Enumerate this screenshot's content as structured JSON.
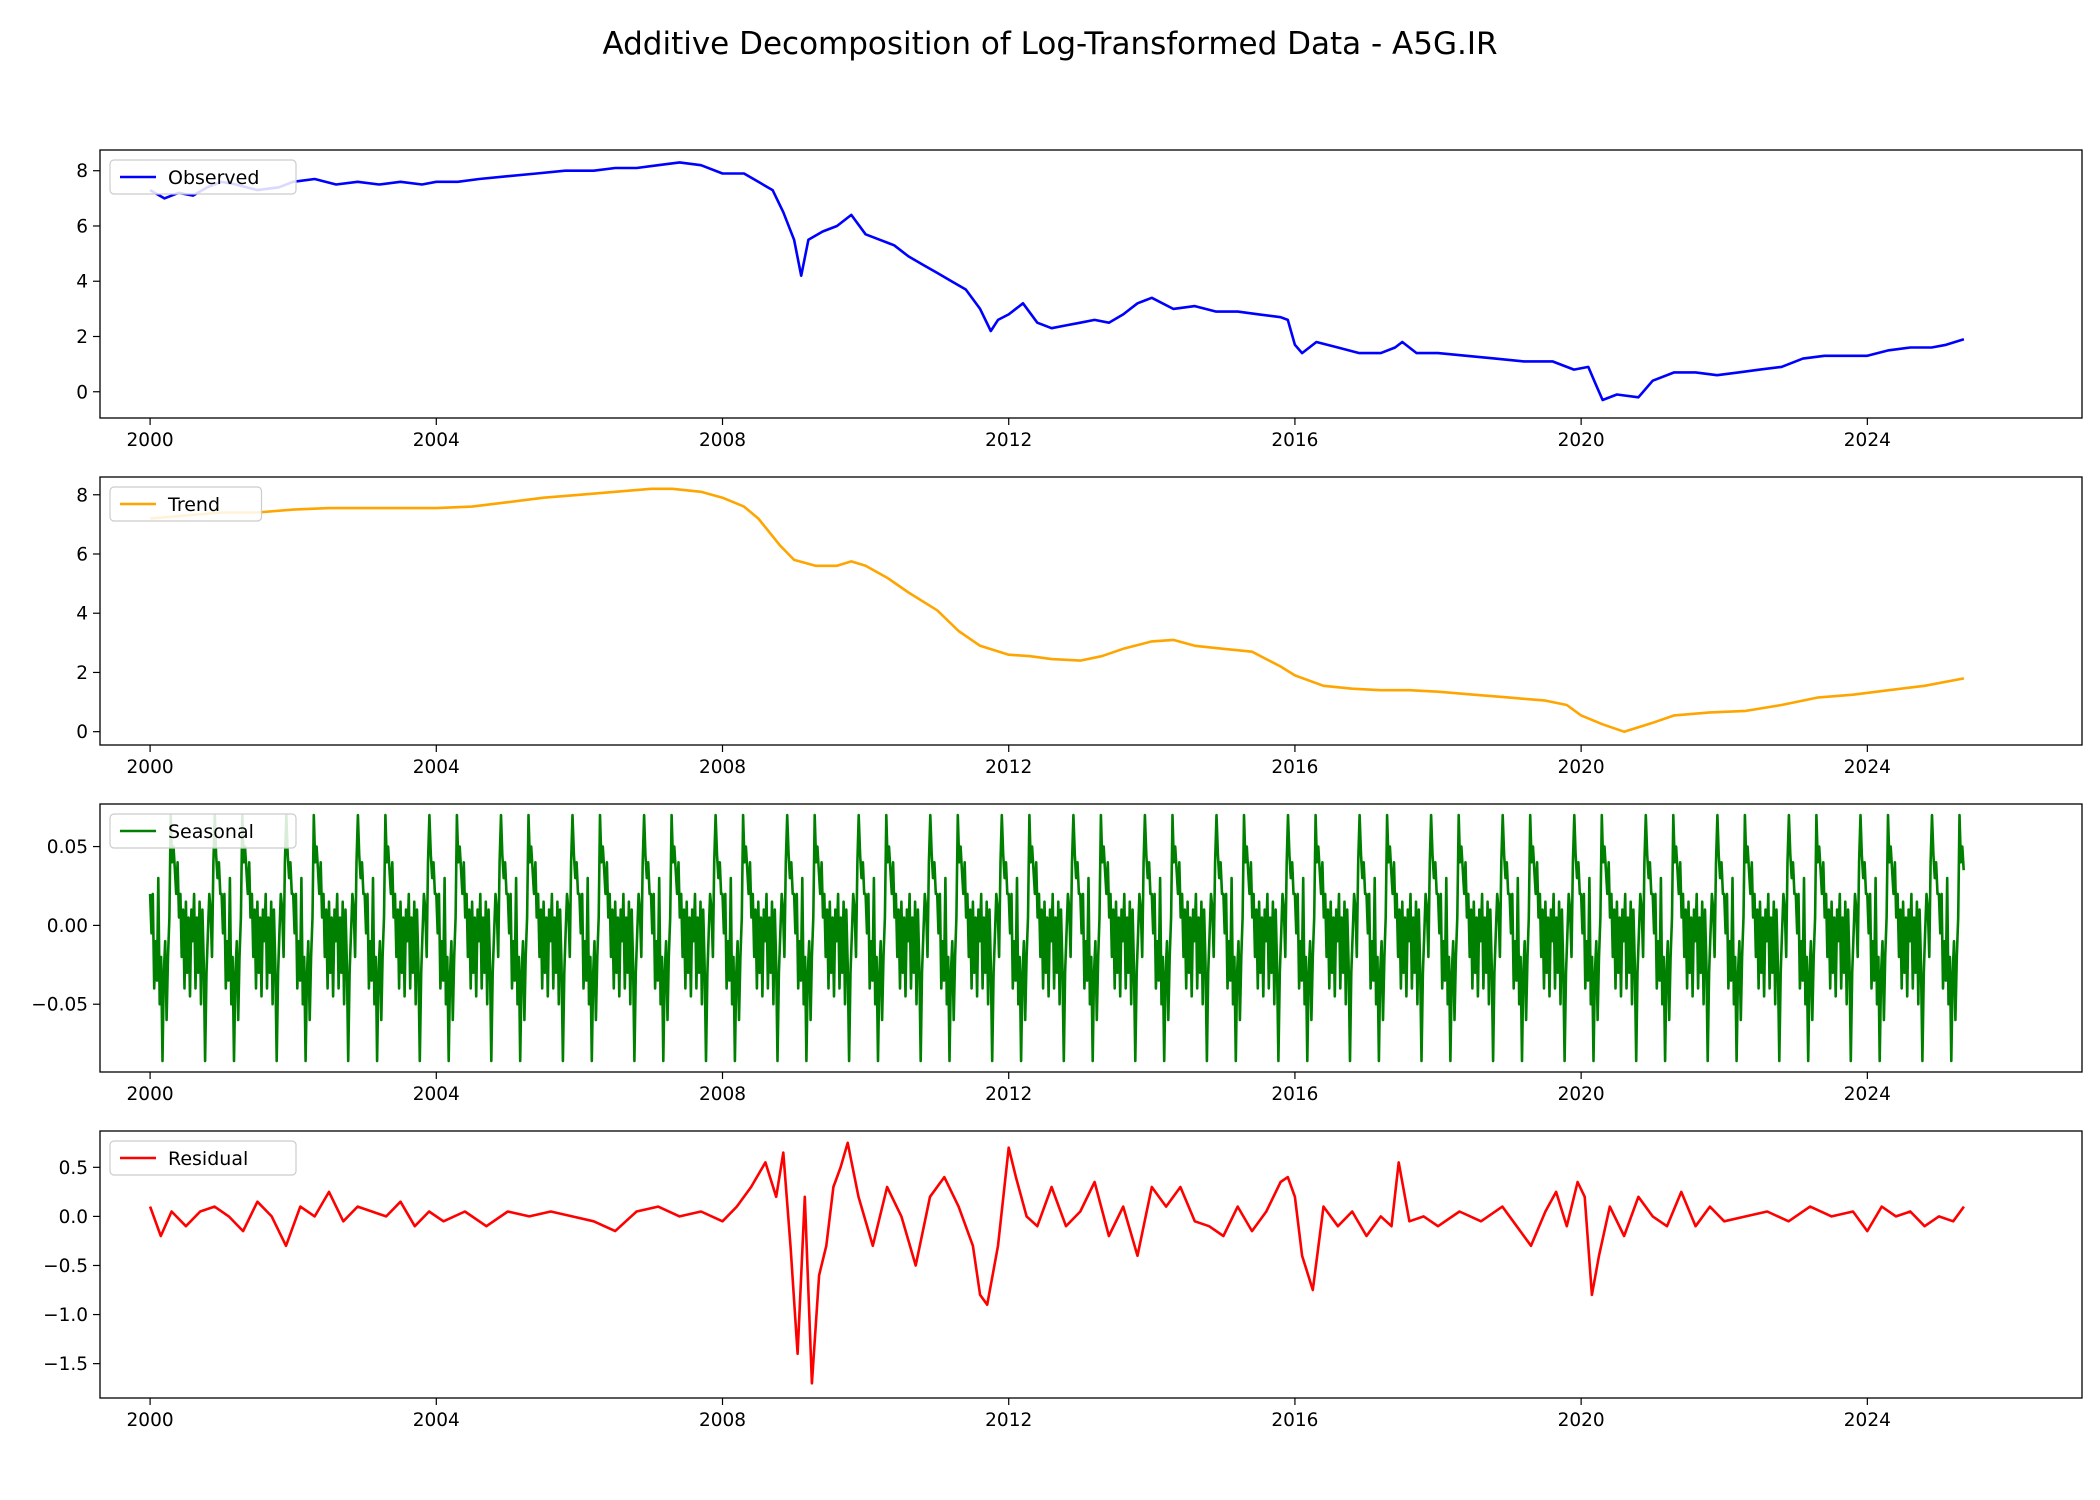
{
  "title": "Additive Decomposition of Log-Transformed Data - A5G.IR",
  "chart_data": [
    {
      "type": "line",
      "name": "Observed",
      "color": "#0000ff",
      "legend": "upper-left",
      "xlim": [
        1999.3,
        2027.0
      ],
      "ylim": [
        -0.95,
        8.75
      ],
      "x_ticks": [
        2000,
        2004,
        2008,
        2012,
        2016,
        2020,
        2024
      ],
      "x_tick_labels": [
        "2000",
        "2004",
        "2008",
        "2012",
        "2016",
        "2020",
        "2024"
      ],
      "y_ticks": [
        0,
        2,
        4,
        6,
        8
      ],
      "y_tick_labels": [
        "0",
        "2",
        "4",
        "6",
        "8"
      ],
      "x": [
        2000.0,
        2000.2,
        2000.4,
        2000.6,
        2000.8,
        2001.0,
        2001.2,
        2001.5,
        2001.8,
        2002.0,
        2002.3,
        2002.6,
        2002.9,
        2003.2,
        2003.5,
        2003.8,
        2004.0,
        2004.3,
        2004.6,
        2005.0,
        2005.4,
        2005.8,
        2006.2,
        2006.5,
        2006.8,
        2007.1,
        2007.4,
        2007.7,
        2008.0,
        2008.3,
        2008.5,
        2008.7,
        2008.85,
        2009.0,
        2009.1,
        2009.2,
        2009.4,
        2009.6,
        2009.8,
        2010.0,
        2010.2,
        2010.4,
        2010.6,
        2010.8,
        2011.0,
        2011.2,
        2011.4,
        2011.6,
        2011.75,
        2011.85,
        2012.0,
        2012.2,
        2012.4,
        2012.6,
        2012.8,
        2013.0,
        2013.2,
        2013.4,
        2013.6,
        2013.8,
        2014.0,
        2014.3,
        2014.6,
        2014.9,
        2015.2,
        2015.5,
        2015.8,
        2015.9,
        2016.0,
        2016.1,
        2016.3,
        2016.6,
        2016.9,
        2017.2,
        2017.4,
        2017.5,
        2017.7,
        2018.0,
        2018.4,
        2018.8,
        2019.2,
        2019.6,
        2019.8,
        2019.9,
        2020.1,
        2020.2,
        2020.3,
        2020.5,
        2020.8,
        2021.0,
        2021.3,
        2021.6,
        2021.9,
        2022.2,
        2022.5,
        2022.8,
        2023.1,
        2023.4,
        2023.7,
        2024.0,
        2024.3,
        2024.6,
        2024.9,
        2025.1,
        2025.35
      ],
      "y": [
        7.3,
        7.0,
        7.2,
        7.1,
        7.4,
        7.6,
        7.5,
        7.3,
        7.4,
        7.6,
        7.7,
        7.5,
        7.6,
        7.5,
        7.6,
        7.5,
        7.6,
        7.6,
        7.7,
        7.8,
        7.9,
        8.0,
        8.0,
        8.1,
        8.1,
        8.2,
        8.3,
        8.2,
        7.9,
        7.9,
        7.6,
        7.3,
        6.5,
        5.5,
        4.2,
        5.5,
        5.8,
        6.0,
        6.4,
        5.7,
        5.5,
        5.3,
        4.9,
        4.6,
        4.3,
        4.0,
        3.7,
        3.0,
        2.2,
        2.6,
        2.8,
        3.2,
        2.5,
        2.3,
        2.4,
        2.5,
        2.6,
        2.5,
        2.8,
        3.2,
        3.4,
        3.0,
        3.1,
        2.9,
        2.9,
        2.8,
        2.7,
        2.6,
        1.7,
        1.4,
        1.8,
        1.6,
        1.4,
        1.4,
        1.6,
        1.8,
        1.4,
        1.4,
        1.3,
        1.2,
        1.1,
        1.1,
        0.9,
        0.8,
        0.9,
        0.3,
        -0.3,
        -0.1,
        -0.2,
        0.4,
        0.7,
        0.7,
        0.6,
        0.7,
        0.8,
        0.9,
        1.2,
        1.3,
        1.3,
        1.3,
        1.5,
        1.6,
        1.6,
        1.7,
        1.9
      ]
    },
    {
      "type": "line",
      "name": "Trend",
      "color": "#ffa500",
      "legend": "upper-left",
      "xlim": [
        1999.3,
        2027.0
      ],
      "ylim": [
        -0.45,
        8.6
      ],
      "x_ticks": [
        2000,
        2004,
        2008,
        2012,
        2016,
        2020,
        2024
      ],
      "x_tick_labels": [
        "2000",
        "2004",
        "2008",
        "2012",
        "2016",
        "2020",
        "2024"
      ],
      "y_ticks": [
        0,
        2,
        4,
        6,
        8
      ],
      "y_tick_labels": [
        "0",
        "2",
        "4",
        "6",
        "8"
      ],
      "x": [
        2000.0,
        2000.5,
        2001.0,
        2001.5,
        2002.0,
        2002.5,
        2003.0,
        2003.5,
        2004.0,
        2004.5,
        2005.0,
        2005.5,
        2006.0,
        2006.5,
        2007.0,
        2007.3,
        2007.7,
        2008.0,
        2008.3,
        2008.5,
        2008.8,
        2009.0,
        2009.3,
        2009.6,
        2009.8,
        2010.0,
        2010.3,
        2010.6,
        2011.0,
        2011.3,
        2011.6,
        2012.0,
        2012.3,
        2012.6,
        2013.0,
        2013.3,
        2013.6,
        2014.0,
        2014.3,
        2014.6,
        2015.0,
        2015.4,
        2015.8,
        2016.0,
        2016.4,
        2016.8,
        2017.2,
        2017.6,
        2018.0,
        2018.5,
        2019.0,
        2019.5,
        2019.8,
        2020.0,
        2020.3,
        2020.6,
        2021.0,
        2021.3,
        2021.8,
        2022.3,
        2022.8,
        2023.3,
        2023.8,
        2024.3,
        2024.8,
        2025.35
      ],
      "y": [
        7.2,
        7.3,
        7.4,
        7.4,
        7.5,
        7.55,
        7.55,
        7.55,
        7.55,
        7.6,
        7.75,
        7.9,
        8.0,
        8.1,
        8.2,
        8.2,
        8.1,
        7.9,
        7.6,
        7.2,
        6.3,
        5.8,
        5.6,
        5.6,
        5.75,
        5.6,
        5.2,
        4.7,
        4.1,
        3.4,
        2.9,
        2.6,
        2.55,
        2.45,
        2.4,
        2.55,
        2.8,
        3.05,
        3.1,
        2.9,
        2.8,
        2.7,
        2.2,
        1.9,
        1.55,
        1.45,
        1.4,
        1.4,
        1.35,
        1.25,
        1.15,
        1.05,
        0.9,
        0.55,
        0.25,
        0.0,
        0.3,
        0.55,
        0.65,
        0.7,
        0.9,
        1.15,
        1.25,
        1.4,
        1.55,
        1.8
      ]
    },
    {
      "type": "line",
      "name": "Seasonal",
      "color": "#008000",
      "legend": "upper-left",
      "xlim": [
        1999.3,
        2027.0
      ],
      "ylim": [
        -0.093,
        0.077
      ],
      "x_ticks": [
        2000,
        2004,
        2008,
        2012,
        2016,
        2020,
        2024
      ],
      "x_tick_labels": [
        "2000",
        "2004",
        "2008",
        "2012",
        "2016",
        "2020",
        "2024"
      ],
      "y_ticks": [
        -0.05,
        0.0,
        0.05
      ],
      "y_tick_labels": [
        "−0.05",
        "0.00",
        "0.05"
      ],
      "period_years": 1,
      "x_start": 2000.0,
      "x_end": 2025.35,
      "one_period": [
        0.02,
        -0.005,
        0.02,
        -0.04,
        -0.01,
        -0.035,
        0.03,
        -0.05,
        -0.02,
        -0.086,
        -0.03,
        -0.01,
        -0.06,
        -0.02,
        0.005,
        0.07,
        0.04,
        0.05,
        0.035,
        0.02,
        0.04,
        0.005,
        0.02,
        -0.02,
        0.01,
        -0.04,
        0.015,
        -0.03,
        0.005,
        -0.045,
        0.01,
        -0.01,
        0.02,
        -0.04,
        0.005,
        -0.03,
        0.015,
        -0.05,
        0.01,
        -0.025,
        -0.086,
        -0.03,
        -0.005,
        0.02,
        0.01,
        -0.02,
        0.04,
        0.07,
        0.045,
        0.03,
        0.04,
        0.02
      ]
    },
    {
      "type": "line",
      "name": "Residual",
      "color": "#ff0000",
      "legend": "upper-left",
      "xlim": [
        1999.3,
        2027.0
      ],
      "ylim": [
        -1.85,
        0.87
      ],
      "x_ticks": [
        2000,
        2004,
        2008,
        2012,
        2016,
        2020,
        2024
      ],
      "x_tick_labels": [
        "2000",
        "2004",
        "2008",
        "2012",
        "2016",
        "2020",
        "2024"
      ],
      "y_ticks": [
        -1.5,
        -1.0,
        -0.5,
        0.0,
        0.5
      ],
      "y_tick_labels": [
        "−1.5",
        "−1.0",
        "−0.5",
        "0.0",
        "0.5"
      ],
      "x": [
        2000.0,
        2000.15,
        2000.3,
        2000.5,
        2000.7,
        2000.9,
        2001.1,
        2001.3,
        2001.5,
        2001.7,
        2001.9,
        2002.1,
        2002.3,
        2002.5,
        2002.7,
        2002.9,
        2003.1,
        2003.3,
        2003.5,
        2003.7,
        2003.9,
        2004.1,
        2004.4,
        2004.7,
        2005.0,
        2005.3,
        2005.6,
        2005.9,
        2006.2,
        2006.5,
        2006.8,
        2007.1,
        2007.4,
        2007.7,
        2008.0,
        2008.2,
        2008.4,
        2008.6,
        2008.75,
        2008.85,
        2008.95,
        2009.05,
        2009.15,
        2009.25,
        2009.35,
        2009.45,
        2009.55,
        2009.65,
        2009.75,
        2009.9,
        2010.1,
        2010.3,
        2010.5,
        2010.7,
        2010.9,
        2011.1,
        2011.3,
        2011.5,
        2011.6,
        2011.7,
        2011.85,
        2012.0,
        2012.1,
        2012.25,
        2012.4,
        2012.6,
        2012.8,
        2013.0,
        2013.2,
        2013.4,
        2013.6,
        2013.8,
        2014.0,
        2014.2,
        2014.4,
        2014.6,
        2014.8,
        2015.0,
        2015.2,
        2015.4,
        2015.6,
        2015.8,
        2015.9,
        2016.0,
        2016.1,
        2016.25,
        2016.4,
        2016.6,
        2016.8,
        2017.0,
        2017.2,
        2017.35,
        2017.45,
        2017.6,
        2017.8,
        2018.0,
        2018.3,
        2018.6,
        2018.9,
        2019.1,
        2019.3,
        2019.5,
        2019.65,
        2019.8,
        2019.95,
        2020.05,
        2020.15,
        2020.25,
        2020.4,
        2020.6,
        2020.8,
        2021.0,
        2021.2,
        2021.4,
        2021.6,
        2021.8,
        2022.0,
        2022.3,
        2022.6,
        2022.9,
        2023.2,
        2023.5,
        2023.8,
        2024.0,
        2024.2,
        2024.4,
        2024.6,
        2024.8,
        2025.0,
        2025.2,
        2025.35
      ],
      "y": [
        0.1,
        -0.2,
        0.05,
        -0.1,
        0.05,
        0.1,
        0.0,
        -0.15,
        0.15,
        0.0,
        -0.3,
        0.1,
        0.0,
        0.25,
        -0.05,
        0.1,
        0.05,
        0.0,
        0.15,
        -0.1,
        0.05,
        -0.05,
        0.05,
        -0.1,
        0.05,
        0.0,
        0.05,
        0.0,
        -0.05,
        -0.15,
        0.05,
        0.1,
        0.0,
        0.05,
        -0.05,
        0.1,
        0.3,
        0.55,
        0.2,
        0.65,
        -0.3,
        -1.4,
        0.2,
        -1.7,
        -0.6,
        -0.3,
        0.3,
        0.5,
        0.75,
        0.2,
        -0.3,
        0.3,
        0.0,
        -0.5,
        0.2,
        0.4,
        0.1,
        -0.3,
        -0.8,
        -0.9,
        -0.3,
        0.7,
        0.4,
        0.0,
        -0.1,
        0.3,
        -0.1,
        0.05,
        0.35,
        -0.2,
        0.1,
        -0.4,
        0.3,
        0.1,
        0.3,
        -0.05,
        -0.1,
        -0.2,
        0.1,
        -0.15,
        0.05,
        0.35,
        0.4,
        0.2,
        -0.4,
        -0.75,
        0.1,
        -0.1,
        0.05,
        -0.2,
        0.0,
        -0.1,
        0.55,
        -0.05,
        0.0,
        -0.1,
        0.05,
        -0.05,
        0.1,
        -0.1,
        -0.3,
        0.05,
        0.25,
        -0.1,
        0.35,
        0.2,
        -0.8,
        -0.4,
        0.1,
        -0.2,
        0.2,
        0.0,
        -0.1,
        0.25,
        -0.1,
        0.1,
        -0.05,
        0.0,
        0.05,
        -0.05,
        0.1,
        0.0,
        0.05,
        -0.15,
        0.1,
        0.0,
        0.05,
        -0.1,
        0.0,
        -0.05,
        0.1
      ]
    }
  ]
}
